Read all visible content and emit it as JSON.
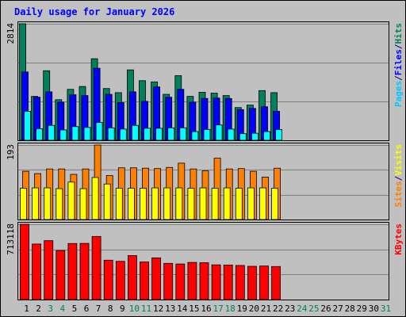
{
  "chart_data": {
    "type": "bar",
    "title": "Daily usage for January 2026",
    "x": [
      1,
      2,
      3,
      4,
      5,
      6,
      7,
      8,
      9,
      10,
      11,
      12,
      13,
      14,
      15,
      16,
      17,
      18,
      19,
      20,
      21,
      22,
      23,
      24,
      25,
      26,
      27,
      28,
      29,
      30,
      31
    ],
    "weekend_days": [
      3,
      4,
      10,
      11,
      17,
      18,
      24,
      25,
      31
    ],
    "panels": [
      {
        "name": "pages-files-hits",
        "ymax_label": "2814",
        "ymax": 2814,
        "series": [
          {
            "name": "Hits",
            "color": "#00805c",
            "values": [
              2814,
              1060,
              1680,
              980,
              1230,
              1300,
              1970,
              1250,
              1150,
              1700,
              1440,
              1410,
              1110,
              1560,
              1060,
              1160,
              1140,
              1080,
              790,
              850,
              1200,
              1150
            ]
          },
          {
            "name": "Files",
            "color": "#0000ff",
            "values": [
              1650,
              1040,
              1170,
              920,
              1100,
              1080,
              1740,
              1110,
              910,
              1170,
              940,
              1290,
              1040,
              1230,
              920,
              1010,
              1020,
              1010,
              740,
              770,
              810,
              700
            ]
          },
          {
            "name": "Pages",
            "color": "#00ffff",
            "values": [
              700,
              280,
              360,
              250,
              330,
              310,
              430,
              300,
              270,
              360,
              290,
              290,
              300,
              300,
              210,
              260,
              370,
              270,
              160,
              170,
              210,
              260
            ]
          }
        ]
      },
      {
        "name": "visits-sites",
        "ymax_label": "193",
        "ymax": 193,
        "series": [
          {
            "name": "Visits",
            "color": "#ff8000",
            "values": [
              125,
              119,
              131,
              131,
              117,
              131,
              193,
              114,
              134,
              134,
              133,
              132,
              135,
              146,
              131,
              126,
              159,
              131,
              132,
              125,
              110,
              133
            ]
          },
          {
            "name": "Sites",
            "color": "#ffff00",
            "values": [
              81,
              82,
              82,
              80,
              97,
              80,
              109,
              92,
              81,
              81,
              81,
              82,
              82,
              82,
              81,
              82,
              81,
              82,
              81,
              82,
              82,
              81
            ]
          }
        ]
      },
      {
        "name": "kbytes",
        "ymax_label": "713118",
        "ymax": 713118,
        "series": [
          {
            "name": "KBytes",
            "color": "#ff0000",
            "values": [
              713118,
              526000,
              558000,
              465000,
              531000,
              532000,
              598000,
              373000,
              362000,
              417000,
              356000,
              395000,
              343000,
              337000,
              352000,
              349000,
              329000,
              327000,
              323000,
              315000,
              318000,
              313000
            ]
          }
        ]
      }
    ],
    "legends": [
      {
        "panel": "pages-files-hits",
        "items": [
          {
            "text": "Pages",
            "color": "#00c8ff"
          },
          {
            "text": "/",
            "color": "#000080"
          },
          {
            "text": "Files",
            "color": "#0000ff"
          },
          {
            "text": "/",
            "color": "#000080"
          },
          {
            "text": "Hits",
            "color": "#00805c"
          }
        ]
      },
      {
        "panel": "visits-sites",
        "items": [
          {
            "text": "Sites",
            "color": "#ff8000"
          },
          {
            "text": "/",
            "color": "#000080"
          },
          {
            "text": "Visits",
            "color": "#ffff00"
          }
        ]
      },
      {
        "panel": "kbytes",
        "items": [
          {
            "text": "KBytes",
            "color": "#ff0000"
          }
        ]
      }
    ],
    "colors": {
      "background": "#c0c0c0",
      "plot": "#c0c0c0",
      "title": "#0000ff",
      "gridline": "#808080",
      "weekday_label": "#000000",
      "weekend_label": "#00805c"
    }
  }
}
